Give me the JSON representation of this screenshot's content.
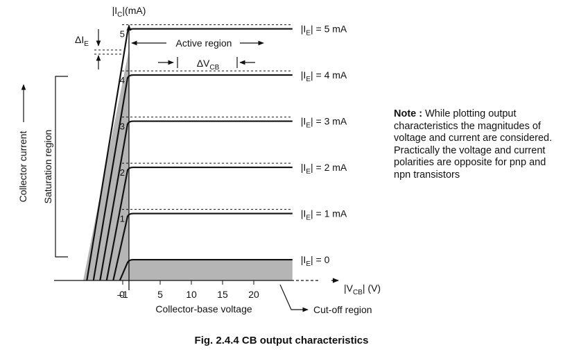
{
  "chart_data": {
    "type": "line",
    "title": "",
    "xlabel": "Collector-base voltage",
    "ylabel": "Collector current",
    "x_axis_symbol": "|V",
    "x_axis_sub": "CB",
    "x_axis_unit": "| (V)",
    "y_axis_symbol": "|I",
    "y_axis_sub": "C",
    "y_axis_unit": "|(mA)",
    "x_ticks": [
      -1,
      0,
      5,
      10,
      15,
      20
    ],
    "x_tick_labels": [
      "–1",
      "0",
      "5",
      "10",
      "15",
      "20"
    ],
    "y_ticks": [
      1,
      2,
      3,
      4,
      5
    ],
    "y_tick_labels": [
      "1",
      "2",
      "3",
      "4",
      "5"
    ],
    "series": [
      {
        "name": "|I_E| = 0",
        "label_pre": "|I",
        "label_sub": "E",
        "label_post": "| = 0",
        "ie": 0,
        "ic": 0.0
      },
      {
        "name": "|I_E| = 1 mA",
        "label_pre": "|I",
        "label_sub": "E",
        "label_post": "| = 1 mA",
        "ie": 1,
        "ic": 1.0
      },
      {
        "name": "|I_E| = 2 mA",
        "label_pre": "|I",
        "label_sub": "E",
        "label_post": "| = 2 mA",
        "ie": 2,
        "ic": 2.0
      },
      {
        "name": "|I_E| = 3 mA",
        "label_pre": "|I",
        "label_sub": "E",
        "label_post": "| = 3 mA",
        "ie": 3,
        "ic": 3.0
      },
      {
        "name": "|I_E| = 4 mA",
        "label_pre": "|I",
        "label_sub": "E",
        "label_post": "| = 4 mA",
        "ie": 4,
        "ic": 4.0
      },
      {
        "name": "|I_E| = 5 mA",
        "label_pre": "|I",
        "label_sub": "E",
        "label_post": "| = 5 mA",
        "ie": 5,
        "ic": 5.0
      }
    ],
    "annotations": {
      "active_region": "Active region",
      "saturation_region": "Saturation region",
      "cutoff_region": "Cut-off region",
      "delta_ie_pre": "ΔI",
      "delta_ie_sub": "E",
      "delta_vcb_pre": "ΔV",
      "delta_vcb_sub": "CB"
    }
  },
  "note": {
    "label": "Note :",
    "text": " While plotting output characteristics the magnitudes of voltage and current are considered. Practically the voltage and current polarities are opposite for pnp and npn transistors"
  },
  "caption": "Fig. 2.4.4  CB  output  characteristics"
}
